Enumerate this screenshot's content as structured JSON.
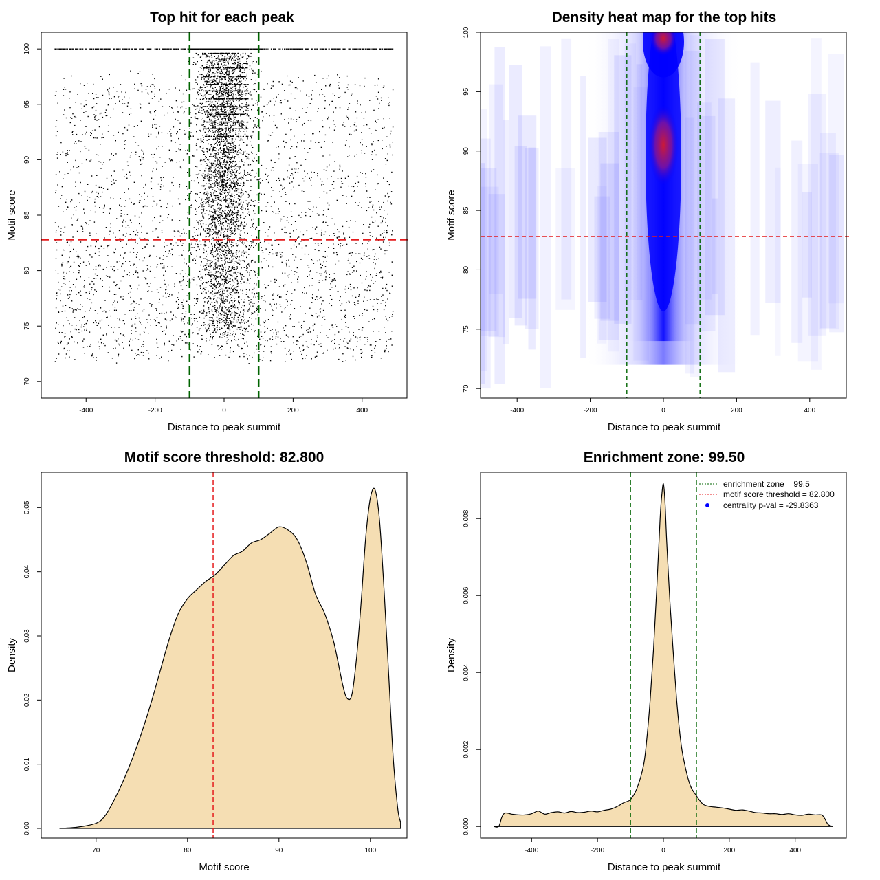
{
  "colors": {
    "threshold_red": "#e41a1c",
    "zone_green": "#006400",
    "density_fill": "#f5deb3",
    "heat_low": "#ffffff",
    "heat_mid": "#0000ff",
    "heat_high": "#c81e32"
  },
  "chart_data": [
    {
      "id": "top-hit",
      "type": "scatter",
      "title": "Top hit for each peak",
      "xlabel": "Distance to peak summit",
      "ylabel": "Motif score",
      "xlim": [
        -530,
        530
      ],
      "ylim": [
        68.5,
        101.5
      ],
      "xticks": [
        -400,
        -200,
        0,
        200,
        400
      ],
      "yticks": [
        70,
        75,
        80,
        85,
        90,
        95,
        100
      ],
      "vlines": [
        -100,
        100
      ],
      "hline": 82.8,
      "points_described": "~9000 hits; uniform background over x in [-490, 490] for scores 70-100, strong concentration within +/-100 of summit, dense row at score 100 across full range"
    },
    {
      "id": "heatmap",
      "type": "heatmap",
      "title": "Density heat map for the top hits",
      "xlabel": "Distance to peak summit",
      "ylabel": "Motif score",
      "xlim": [
        -500,
        500
      ],
      "ylim": [
        69.2,
        100
      ],
      "xticks": [
        -400,
        -200,
        0,
        200,
        400
      ],
      "yticks": [
        70,
        75,
        80,
        85,
        90,
        95,
        100
      ],
      "vlines": [
        -100,
        100
      ],
      "hline": 82.8,
      "hotspots": [
        {
          "x": 0,
          "y": 99.5,
          "level": "high"
        },
        {
          "x": 0,
          "y": 90.5,
          "level": "high"
        }
      ]
    },
    {
      "id": "score-density",
      "type": "area",
      "title": "Motif score threshold: 82.800",
      "xlabel": "Motif score",
      "ylabel": "Density",
      "xlim": [
        64,
        104
      ],
      "ylim": [
        -0.0015,
        0.0555
      ],
      "xticks": [
        70,
        80,
        90,
        100
      ],
      "yticks": [
        0.0,
        0.01,
        0.02,
        0.03,
        0.04,
        0.05
      ],
      "ytick_labels": [
        "0.00",
        "0.01",
        "0.02",
        "0.03",
        "0.04",
        "0.05"
      ],
      "vline": 82.8,
      "x": [
        66,
        68,
        70,
        71,
        72,
        73,
        74,
        75,
        76,
        77,
        78,
        79,
        80,
        81,
        82,
        83,
        84,
        85,
        86,
        87,
        88,
        89,
        90,
        91,
        92,
        93,
        94,
        95,
        96,
        97,
        97.5,
        98,
        98.5,
        99,
        99.5,
        100,
        100.5,
        101,
        101.5,
        102,
        102.5,
        103,
        103.3
      ],
      "y": [
        0.0,
        0.0002,
        0.0008,
        0.002,
        0.0045,
        0.0075,
        0.011,
        0.015,
        0.0195,
        0.0245,
        0.0295,
        0.0335,
        0.0358,
        0.0372,
        0.0385,
        0.0395,
        0.041,
        0.0425,
        0.0432,
        0.0445,
        0.045,
        0.046,
        0.047,
        0.0465,
        0.045,
        0.0415,
        0.0365,
        0.0335,
        0.029,
        0.0222,
        0.0202,
        0.021,
        0.0268,
        0.0355,
        0.0455,
        0.0515,
        0.0528,
        0.048,
        0.037,
        0.024,
        0.011,
        0.003,
        0.001
      ]
    },
    {
      "id": "distance-density",
      "type": "area",
      "title": "Enrichment zone: 99.50",
      "xlabel": "Distance to peak summit",
      "ylabel": "Density",
      "xlim": [
        -555,
        555
      ],
      "ylim": [
        -0.0003,
        0.0092
      ],
      "xticks": [
        -400,
        -200,
        0,
        200,
        400
      ],
      "yticks": [
        0.0,
        0.002,
        0.004,
        0.006,
        0.008
      ],
      "ytick_labels": [
        "0.000",
        "0.002",
        "0.004",
        "0.006",
        "0.008"
      ],
      "vlines": [
        -100,
        100
      ],
      "x": [
        -515,
        -500,
        -490,
        -480,
        -460,
        -440,
        -420,
        -400,
        -380,
        -360,
        -340,
        -320,
        -300,
        -280,
        -260,
        -240,
        -220,
        -200,
        -180,
        -160,
        -140,
        -120,
        -100,
        -80,
        -60,
        -50,
        -40,
        -30,
        -20,
        -10,
        -5,
        0,
        5,
        10,
        20,
        30,
        40,
        50,
        60,
        80,
        100,
        120,
        140,
        160,
        180,
        200,
        220,
        240,
        260,
        280,
        300,
        320,
        340,
        360,
        380,
        400,
        420,
        440,
        460,
        480,
        490,
        500,
        515
      ],
      "y": [
        0.0,
        0.0,
        0.00025,
        0.00035,
        0.00032,
        0.0003,
        0.0003,
        0.00033,
        0.0004,
        0.00032,
        0.00036,
        0.00038,
        0.00035,
        0.00039,
        0.00036,
        0.00037,
        0.0004,
        0.00038,
        0.00042,
        0.00045,
        0.00052,
        0.00062,
        0.0007,
        0.001,
        0.0016,
        0.0023,
        0.0033,
        0.0046,
        0.0062,
        0.008,
        0.0086,
        0.0089,
        0.0084,
        0.0074,
        0.0058,
        0.0045,
        0.0033,
        0.0024,
        0.0018,
        0.0011,
        0.0008,
        0.00058,
        0.00052,
        0.0005,
        0.00048,
        0.00045,
        0.00042,
        0.00043,
        0.0004,
        0.00036,
        0.00035,
        0.00033,
        0.00033,
        0.00031,
        0.00033,
        0.0003,
        0.00029,
        0.00032,
        0.0003,
        0.0003,
        0.0002,
        5e-05,
        0.0
      ],
      "legend": [
        {
          "label": "enrichment zone = 99.5",
          "style": "dotted",
          "color": "#006400"
        },
        {
          "label": "motif score threshold = 82.800",
          "style": "dotted",
          "color": "#e41a1c"
        },
        {
          "label": "centrality p-val = -29.8363",
          "style": "point",
          "color": "#0000ff"
        }
      ]
    }
  ]
}
